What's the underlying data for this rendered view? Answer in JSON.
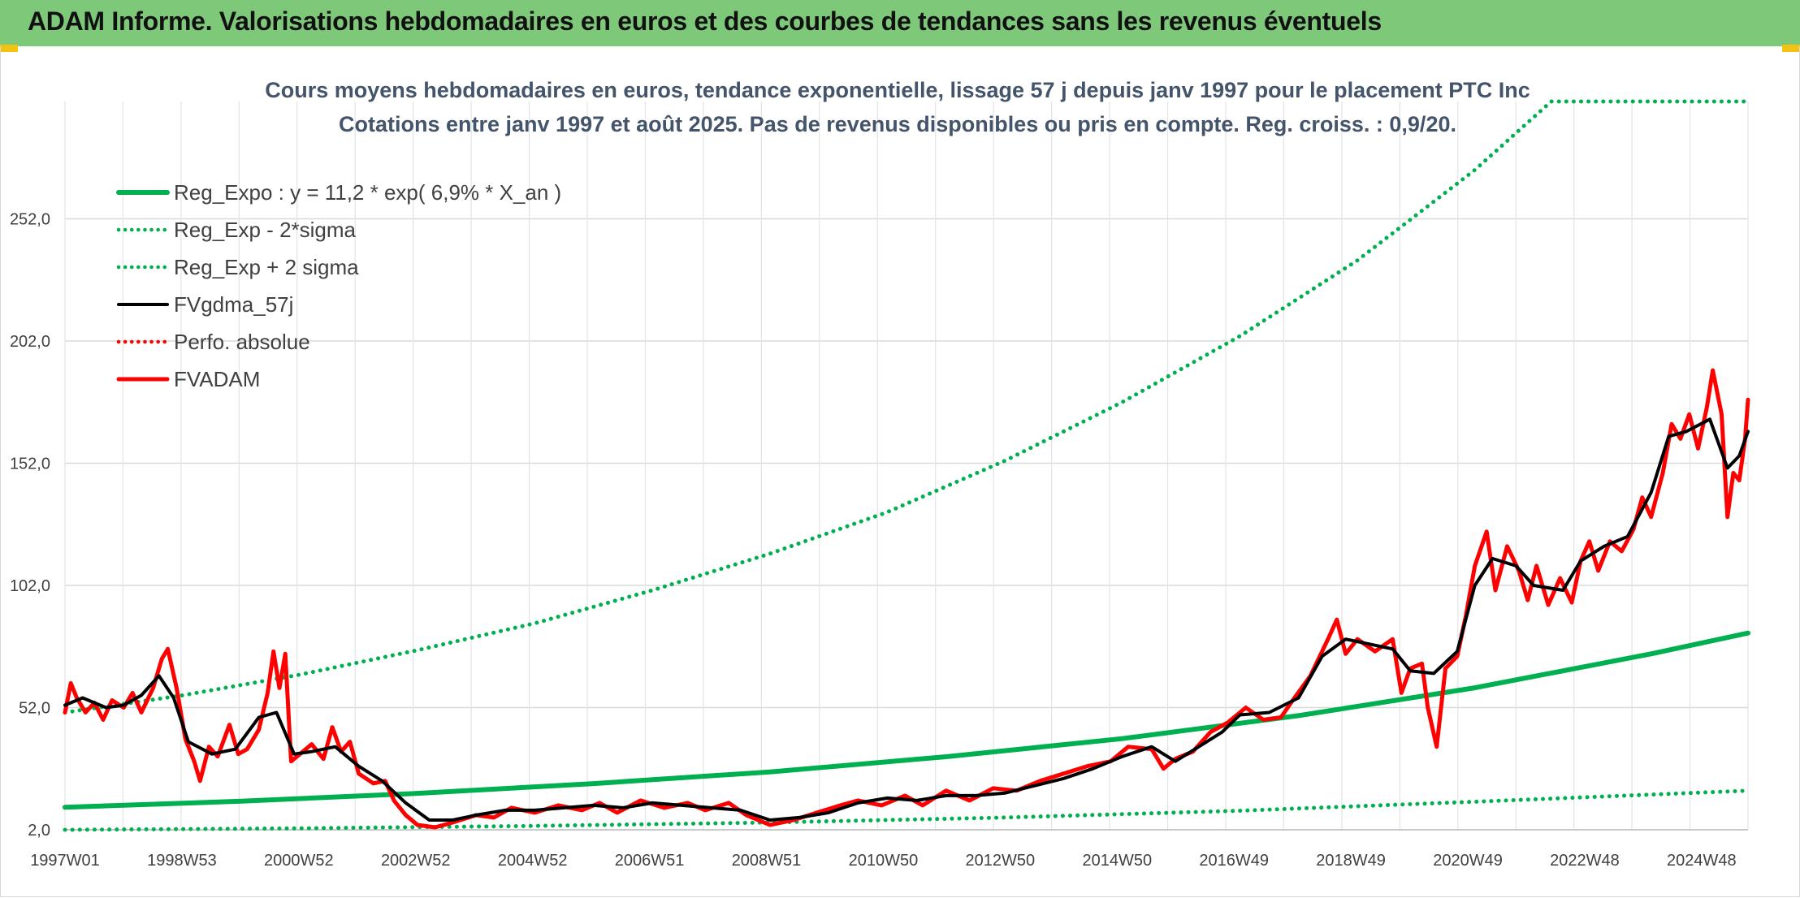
{
  "header": {
    "title": "ADAM Informe. Valorisations hebdomadaires en euros et des courbes de tendances sans les revenus éventuels"
  },
  "colors": {
    "header_bg": "#7ec87a",
    "accent": "#f4c311",
    "green": "#00b050",
    "red": "#ff0000",
    "black": "#000000"
  },
  "chart_data": {
    "type": "line",
    "title": "Cours moyens hebdomadaires en euros, tendance exponentielle, lissage 57 j depuis janv 1997 pour le placement PTC Inc",
    "subtitle": "Cotations entre janv 1997 et août 2025. Pas de revenus disponibles ou pris en compte. Reg. croiss. : 0,9/20.",
    "xlabel": "",
    "ylabel": "",
    "x_ticks": [
      "1997W01",
      "1998W53",
      "2000W52",
      "2002W52",
      "2004W52",
      "2006W51",
      "2008W51",
      "2010W50",
      "2012W50",
      "2014W50",
      "2016W49",
      "2018W49",
      "2020W49",
      "2022W48",
      "2024W48"
    ],
    "x_range": [
      1997.0,
      2025.65
    ],
    "y_ticks": [
      "2,0",
      "52,0",
      "102,0",
      "152,0",
      "202,0",
      "252,0"
    ],
    "ylim": [
      2,
      300
    ],
    "grid": true,
    "legend_position": "top-left",
    "legend": [
      {
        "name": "Reg_Expo : y = 11,2 * exp( 6,9% *  X_an )",
        "color": "#00b050",
        "style": "solid",
        "width": 6
      },
      {
        "name": "Reg_Exp - 2*sigma",
        "color": "#00b050",
        "style": "dotted",
        "width": 4
      },
      {
        "name": "Reg_Exp + 2 sigma",
        "color": "#00b050",
        "style": "dotted",
        "width": 4
      },
      {
        "name": "FVgdma_57j",
        "color": "#000000",
        "style": "solid",
        "width": 4
      },
      {
        "name": "Perfo. absolue",
        "color": "#ff0000",
        "style": "dotted",
        "width": 3
      },
      {
        "name": "FVADAM",
        "color": "#ff0000",
        "style": "solid",
        "width": 5
      }
    ],
    "series": [
      {
        "name": "Reg_Expo : y = 11,2 * exp( 6,9% *  X_an )",
        "points": [
          [
            1997.0,
            11.2
          ],
          [
            2000.0,
            13.7
          ],
          [
            2003.0,
            16.9
          ],
          [
            2006.0,
            20.9
          ],
          [
            2009.0,
            25.7
          ],
          [
            2012.0,
            31.9
          ],
          [
            2015.0,
            39.3
          ],
          [
            2018.0,
            48.7
          ],
          [
            2021.0,
            60.1
          ],
          [
            2024.0,
            74.0
          ],
          [
            2025.65,
            82.5
          ]
        ]
      },
      {
        "name": "Reg_Exp - 2*sigma",
        "points": [
          [
            1997.0,
            2.0
          ],
          [
            2001.0,
            2.6
          ],
          [
            2005.0,
            3.6
          ],
          [
            2009.0,
            5.0
          ],
          [
            2013.0,
            7.0
          ],
          [
            2017.0,
            9.8
          ],
          [
            2021.0,
            13.5
          ],
          [
            2025.65,
            18.0
          ]
        ]
      },
      {
        "name": "Reg_Exp + 2 sigma",
        "points": [
          [
            1997.0,
            50.0
          ],
          [
            1999.0,
            57.0
          ],
          [
            2001.0,
            65.5
          ],
          [
            2003.0,
            75.5
          ],
          [
            2005.0,
            86.5
          ],
          [
            2007.0,
            100.0
          ],
          [
            2009.0,
            115.0
          ],
          [
            2011.0,
            132.0
          ],
          [
            2013.0,
            153.0
          ],
          [
            2015.0,
            177.0
          ],
          [
            2017.0,
            204.0
          ],
          [
            2019.0,
            235.0
          ],
          [
            2021.0,
            272.0
          ],
          [
            2022.3,
            300.0
          ],
          [
            2025.65,
            300.0
          ]
        ]
      },
      {
        "name": "FVgdma_57j",
        "points": [
          [
            1997.0,
            53
          ],
          [
            1997.3,
            56
          ],
          [
            1997.7,
            52
          ],
          [
            1998.0,
            53
          ],
          [
            1998.3,
            57
          ],
          [
            1998.6,
            65
          ],
          [
            1998.85,
            56
          ],
          [
            1999.1,
            38
          ],
          [
            1999.5,
            33
          ],
          [
            1999.9,
            35
          ],
          [
            2000.3,
            48
          ],
          [
            2000.6,
            50
          ],
          [
            2000.9,
            33
          ],
          [
            2001.2,
            34
          ],
          [
            2001.6,
            36
          ],
          [
            2002.0,
            28
          ],
          [
            2002.4,
            22
          ],
          [
            2002.8,
            13
          ],
          [
            2003.2,
            6
          ],
          [
            2003.6,
            6
          ],
          [
            2004.0,
            8
          ],
          [
            2004.5,
            10
          ],
          [
            2005.0,
            10
          ],
          [
            2005.5,
            11
          ],
          [
            2006.0,
            12
          ],
          [
            2006.5,
            11
          ],
          [
            2007.0,
            13
          ],
          [
            2007.5,
            12
          ],
          [
            2008.0,
            11
          ],
          [
            2008.5,
            10
          ],
          [
            2009.0,
            6
          ],
          [
            2009.5,
            7
          ],
          [
            2010.0,
            9
          ],
          [
            2010.5,
            13
          ],
          [
            2011.0,
            15
          ],
          [
            2011.5,
            14
          ],
          [
            2012.0,
            16
          ],
          [
            2012.5,
            16
          ],
          [
            2013.0,
            17
          ],
          [
            2013.5,
            20
          ],
          [
            2014.0,
            23
          ],
          [
            2014.5,
            27
          ],
          [
            2015.0,
            32
          ],
          [
            2015.5,
            36
          ],
          [
            2015.9,
            30
          ],
          [
            2016.3,
            36
          ],
          [
            2016.7,
            42
          ],
          [
            2017.0,
            49
          ],
          [
            2017.5,
            50
          ],
          [
            2018.0,
            56
          ],
          [
            2018.4,
            73
          ],
          [
            2018.8,
            80
          ],
          [
            2019.2,
            78
          ],
          [
            2019.6,
            76
          ],
          [
            2019.9,
            67
          ],
          [
            2020.3,
            66
          ],
          [
            2020.7,
            75
          ],
          [
            2021.0,
            102
          ],
          [
            2021.3,
            113
          ],
          [
            2021.7,
            110
          ],
          [
            2022.0,
            102
          ],
          [
            2022.5,
            100
          ],
          [
            2022.8,
            112
          ],
          [
            2023.2,
            118
          ],
          [
            2023.6,
            122
          ],
          [
            2024.0,
            140
          ],
          [
            2024.3,
            163
          ],
          [
            2024.6,
            165
          ],
          [
            2025.0,
            170
          ],
          [
            2025.3,
            150
          ],
          [
            2025.5,
            155
          ],
          [
            2025.65,
            165
          ]
        ]
      },
      {
        "name": "FVADAM",
        "points": [
          [
            1997.0,
            50
          ],
          [
            1997.1,
            62
          ],
          [
            1997.2,
            56
          ],
          [
            1997.35,
            50
          ],
          [
            1997.5,
            54
          ],
          [
            1997.65,
            47
          ],
          [
            1997.8,
            55
          ],
          [
            1998.0,
            52
          ],
          [
            1998.15,
            58
          ],
          [
            1998.3,
            50
          ],
          [
            1998.5,
            60
          ],
          [
            1998.65,
            72
          ],
          [
            1998.75,
            76
          ],
          [
            1998.9,
            60
          ],
          [
            1999.05,
            39
          ],
          [
            1999.2,
            30
          ],
          [
            1999.3,
            22
          ],
          [
            1999.45,
            36
          ],
          [
            1999.6,
            32
          ],
          [
            1999.8,
            45
          ],
          [
            1999.95,
            33
          ],
          [
            2000.1,
            35
          ],
          [
            2000.3,
            43
          ],
          [
            2000.45,
            58
          ],
          [
            2000.55,
            75
          ],
          [
            2000.65,
            60
          ],
          [
            2000.75,
            74
          ],
          [
            2000.85,
            30
          ],
          [
            2001.0,
            33
          ],
          [
            2001.2,
            37
          ],
          [
            2001.4,
            31
          ],
          [
            2001.55,
            44
          ],
          [
            2001.7,
            34
          ],
          [
            2001.85,
            38
          ],
          [
            2002.0,
            25
          ],
          [
            2002.25,
            21
          ],
          [
            2002.45,
            22
          ],
          [
            2002.6,
            14
          ],
          [
            2002.8,
            8
          ],
          [
            2003.0,
            4
          ],
          [
            2003.3,
            3
          ],
          [
            2003.6,
            5
          ],
          [
            2004.0,
            8
          ],
          [
            2004.3,
            7
          ],
          [
            2004.6,
            11
          ],
          [
            2005.0,
            9
          ],
          [
            2005.4,
            12
          ],
          [
            2005.8,
            10
          ],
          [
            2006.1,
            13
          ],
          [
            2006.4,
            9
          ],
          [
            2006.8,
            14
          ],
          [
            2007.2,
            11
          ],
          [
            2007.6,
            13
          ],
          [
            2007.9,
            10
          ],
          [
            2008.3,
            13
          ],
          [
            2008.6,
            8
          ],
          [
            2009.0,
            4
          ],
          [
            2009.4,
            6
          ],
          [
            2009.8,
            9
          ],
          [
            2010.2,
            12
          ],
          [
            2010.5,
            14
          ],
          [
            2010.9,
            12
          ],
          [
            2011.3,
            16
          ],
          [
            2011.6,
            12
          ],
          [
            2012.0,
            18
          ],
          [
            2012.4,
            14
          ],
          [
            2012.8,
            19
          ],
          [
            2013.2,
            18
          ],
          [
            2013.6,
            22
          ],
          [
            2014.0,
            25
          ],
          [
            2014.4,
            28
          ],
          [
            2014.8,
            30
          ],
          [
            2015.1,
            36
          ],
          [
            2015.5,
            35
          ],
          [
            2015.7,
            27
          ],
          [
            2015.9,
            31
          ],
          [
            2016.2,
            34
          ],
          [
            2016.5,
            42
          ],
          [
            2016.8,
            46
          ],
          [
            2017.1,
            52
          ],
          [
            2017.4,
            47
          ],
          [
            2017.7,
            48
          ],
          [
            2017.9,
            55
          ],
          [
            2018.2,
            65
          ],
          [
            2018.5,
            80
          ],
          [
            2018.65,
            88
          ],
          [
            2018.8,
            74
          ],
          [
            2019.0,
            80
          ],
          [
            2019.3,
            75
          ],
          [
            2019.6,
            80
          ],
          [
            2019.75,
            58
          ],
          [
            2019.9,
            68
          ],
          [
            2020.1,
            70
          ],
          [
            2020.2,
            52
          ],
          [
            2020.35,
            36
          ],
          [
            2020.5,
            68
          ],
          [
            2020.7,
            73
          ],
          [
            2020.85,
            90
          ],
          [
            2021.0,
            110
          ],
          [
            2021.2,
            124
          ],
          [
            2021.35,
            100
          ],
          [
            2021.55,
            118
          ],
          [
            2021.75,
            108
          ],
          [
            2021.9,
            96
          ],
          [
            2022.05,
            110
          ],
          [
            2022.25,
            94
          ],
          [
            2022.45,
            105
          ],
          [
            2022.65,
            95
          ],
          [
            2022.8,
            112
          ],
          [
            2022.95,
            120
          ],
          [
            2023.1,
            108
          ],
          [
            2023.3,
            120
          ],
          [
            2023.5,
            116
          ],
          [
            2023.7,
            125
          ],
          [
            2023.85,
            138
          ],
          [
            2024.0,
            130
          ],
          [
            2024.2,
            148
          ],
          [
            2024.35,
            168
          ],
          [
            2024.5,
            162
          ],
          [
            2024.65,
            172
          ],
          [
            2024.8,
            158
          ],
          [
            2024.95,
            175
          ],
          [
            2025.05,
            190
          ],
          [
            2025.2,
            172
          ],
          [
            2025.3,
            130
          ],
          [
            2025.4,
            148
          ],
          [
            2025.5,
            145
          ],
          [
            2025.6,
            162
          ],
          [
            2025.65,
            178
          ]
        ]
      }
    ]
  }
}
